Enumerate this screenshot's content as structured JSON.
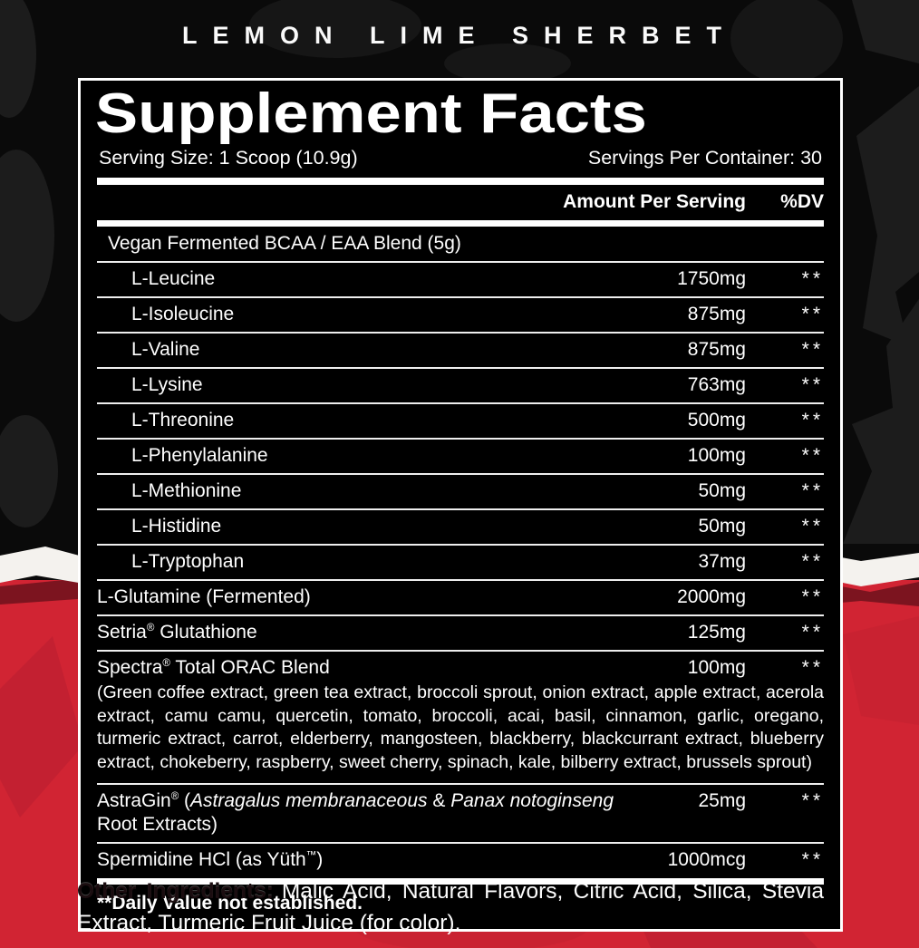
{
  "flavor_title": "LEMON LIME SHERBET",
  "panel": {
    "title": "Supplement Facts",
    "serving_size": "Serving Size: 1 Scoop (10.9g)",
    "servings_per_container": "Servings Per Container: 30",
    "amount_header": "Amount Per Serving",
    "dv_header": "%DV",
    "rows": [
      {
        "name": "Vegan Fermented BCAA / EAA Blend (5g)",
        "amount": "",
        "dv": "",
        "style": "blend"
      },
      {
        "name": "L-Leucine",
        "amount": "1750mg",
        "dv": "**",
        "style": "sub"
      },
      {
        "name": "L-Isoleucine",
        "amount": "875mg",
        "dv": "**",
        "style": "sub"
      },
      {
        "name": "L-Valine",
        "amount": "875mg",
        "dv": "**",
        "style": "sub"
      },
      {
        "name": "L-Lysine",
        "amount": "763mg",
        "dv": "**",
        "style": "sub"
      },
      {
        "name": "L-Threonine",
        "amount": "500mg",
        "dv": "**",
        "style": "sub"
      },
      {
        "name": "L-Phenylalanine",
        "amount": "100mg",
        "dv": "**",
        "style": "sub"
      },
      {
        "name": "L-Methionine",
        "amount": "50mg",
        "dv": "**",
        "style": "sub"
      },
      {
        "name": "L-Histidine",
        "amount": "50mg",
        "dv": "**",
        "style": "sub"
      },
      {
        "name": "L-Tryptophan",
        "amount": "37mg",
        "dv": "**",
        "style": "sub"
      },
      {
        "name": "L-Glutamine (Fermented)",
        "amount": "2000mg",
        "dv": "**",
        "style": "main"
      },
      {
        "name": "Setria® Glutathione",
        "amount": "125mg",
        "dv": "**",
        "style": "main"
      },
      {
        "name": "Spectra® Total ORAC Blend",
        "amount": "100mg",
        "dv": "**",
        "style": "main",
        "description": "(Green coffee extract, green tea extract, broccoli sprout, onion extract, apple extract, acerola extract, camu camu, quercetin, tomato, broccoli, acai, basil, cinnamon, garlic, oregano, turmeric extract, carrot, elderberry, mangosteen, blackberry, blackcurrant extract, blueberry extract, chokeberry, raspberry, sweet cherry, spinach, kale, bilberry extract, brussels sprout)"
      },
      {
        "name_parts": [
          {
            "text": "AstraGin® ("
          },
          {
            "text": "Astragalus membranaceous",
            "italic": true
          },
          {
            "text": " & "
          },
          {
            "text": "Panax notoginseng",
            "italic": true
          },
          {
            "text": " Root Extracts)"
          }
        ],
        "amount": "25mg",
        "dv": "**",
        "style": "main"
      },
      {
        "name": "Spermidine HCl (as Yüth™)",
        "amount": "1000mcg",
        "dv": "**",
        "style": "main"
      }
    ],
    "footnote": "**Daily Value not established."
  },
  "other_ingredients": {
    "label": "Other Ingredients:",
    "text": "Malic Acid, Natural Flavors, Citric Acid, Silica, Stevia Extract, Turmeric Fruit Juice (for color)."
  },
  "colors": {
    "background_black": "#0a0a0a",
    "background_red": "#d12433",
    "torn_paper_white": "#f4f2ee",
    "torn_shadow_red": "#7c141f",
    "panel_background": "#000000",
    "text_white": "#ffffff",
    "other_ingredients_label": "#1b0d10"
  }
}
